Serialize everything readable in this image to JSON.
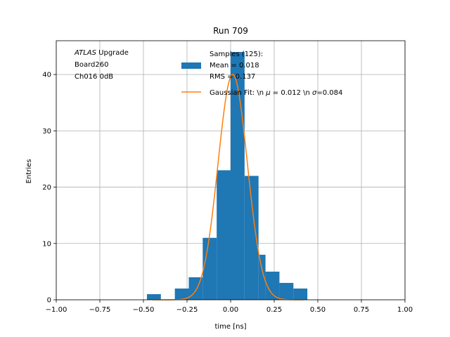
{
  "chart_data": {
    "type": "bar",
    "title": "Run 709",
    "xlabel": "time [ns]",
    "ylabel": "Entries",
    "xlim": [
      -1.0,
      1.0
    ],
    "ylim": [
      0,
      46
    ],
    "grid": true,
    "x_ticks": [
      "−1.00",
      "−0.75",
      "−0.50",
      "−0.25",
      "0.00",
      "0.25",
      "0.50",
      "0.75",
      "1.00"
    ],
    "y_ticks": [
      "0",
      "10",
      "20",
      "30",
      "40"
    ],
    "annotation": {
      "lines": [
        {
          "italic": "ATLAS",
          "text": " Upgrade"
        },
        {
          "italic": "",
          "text": " Board260"
        },
        {
          "italic": "",
          "text": " Ch016 0dB"
        }
      ]
    },
    "histogram": {
      "name_lines": [
        "Samples (125):",
        " Mean = 0.018",
        " RMS = 0.137"
      ],
      "color": "#1f77b4",
      "bins": [
        {
          "x0": -0.48,
          "x1": -0.4,
          "count": 1
        },
        {
          "x0": -0.32,
          "x1": -0.24,
          "count": 2
        },
        {
          "x0": -0.24,
          "x1": -0.16,
          "count": 4
        },
        {
          "x0": -0.16,
          "x1": -0.08,
          "count": 11
        },
        {
          "x0": -0.08,
          "x1": 0.0,
          "count": 23
        },
        {
          "x0": 0.0,
          "x1": 0.08,
          "count": 44
        },
        {
          "x0": 0.08,
          "x1": 0.16,
          "count": 22
        },
        {
          "x0": 0.16,
          "x1": 0.2,
          "count": 8
        },
        {
          "x0": 0.2,
          "x1": 0.28,
          "count": 5
        },
        {
          "x0": 0.28,
          "x1": 0.36,
          "count": 3
        },
        {
          "x0": 0.36,
          "x1": 0.44,
          "count": 2
        }
      ]
    },
    "fit": {
      "name": "Gaussian Fit: \\n $\\mu$ = 0.012 \\n $\\sigma$=0.084",
      "legend_parts": [
        {
          "italic": false,
          "text": "Gaussian Fit: \\n "
        },
        {
          "italic": true,
          "text": "μ"
        },
        {
          "italic": false,
          "text": " = 0.012 \\n "
        },
        {
          "italic": true,
          "text": "σ"
        },
        {
          "italic": false,
          "text": "=0.084"
        }
      ],
      "color": "#ff7f0e",
      "amplitude": 40,
      "mu": 0.012,
      "sigma": 0.084,
      "range": [
        -0.45,
        0.42
      ]
    },
    "legend_placement": "upper center"
  }
}
